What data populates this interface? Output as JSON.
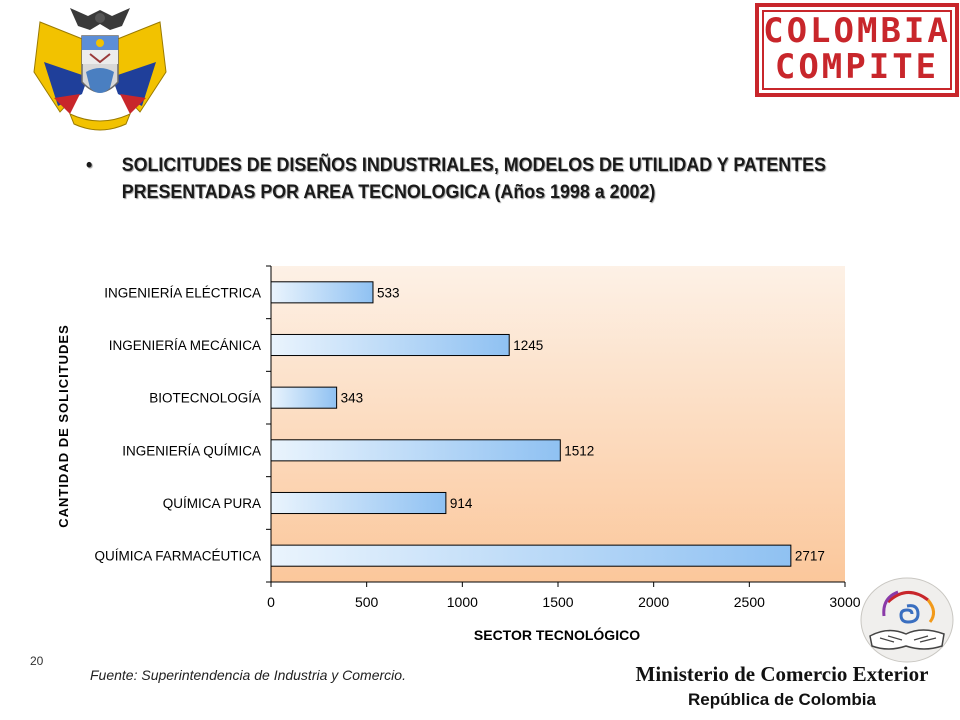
{
  "heading": {
    "bullet": "•",
    "text": "SOLICITUDES DE DISEÑOS INDUSTRIALES, MODELOS DE UTILIDAD Y PATENTES PRESENTADAS POR AREA TECNOLOGICA  (Años 1998 a 2002)"
  },
  "stamp": {
    "line1": "COLOMBIA",
    "line2": "COMPITE"
  },
  "chart_data": {
    "type": "bar",
    "orientation": "horizontal",
    "categories": [
      "INGENIERÍA ELÉCTRICA",
      "INGENIERÍA MECÁNICA",
      "BIOTECNOLOGÍA",
      "INGENIERÍA QUÍMICA",
      "QUÍMICA PURA",
      "QUÍMICA FARMACÉUTICA"
    ],
    "values": [
      533,
      1245,
      343,
      1512,
      914,
      2717
    ],
    "data_labels": [
      "533",
      "1245",
      "343",
      "1512",
      "914",
      "2717"
    ],
    "xlabel": "SECTOR TECNOLÓGICO",
    "ylabel": "CANTIDAD DE SOLICITUDES",
    "xlim": [
      0,
      3000
    ],
    "xticks": [
      0,
      500,
      1000,
      1500,
      2000,
      2500,
      3000
    ],
    "grid": false,
    "colors": {
      "plot_bg_top": "#fdf1e6",
      "plot_bg_bottom": "#fbc79b",
      "bar_light": "#eaf4fd",
      "bar_dark": "#8fc1f2",
      "bar_border": "#000000"
    }
  },
  "footer": {
    "page_number": "20",
    "source": "Fuente: Superintendencia de Industria y Comercio.",
    "ministry": "Ministerio de Comercio Exterior",
    "republic": "República de Colombia"
  }
}
